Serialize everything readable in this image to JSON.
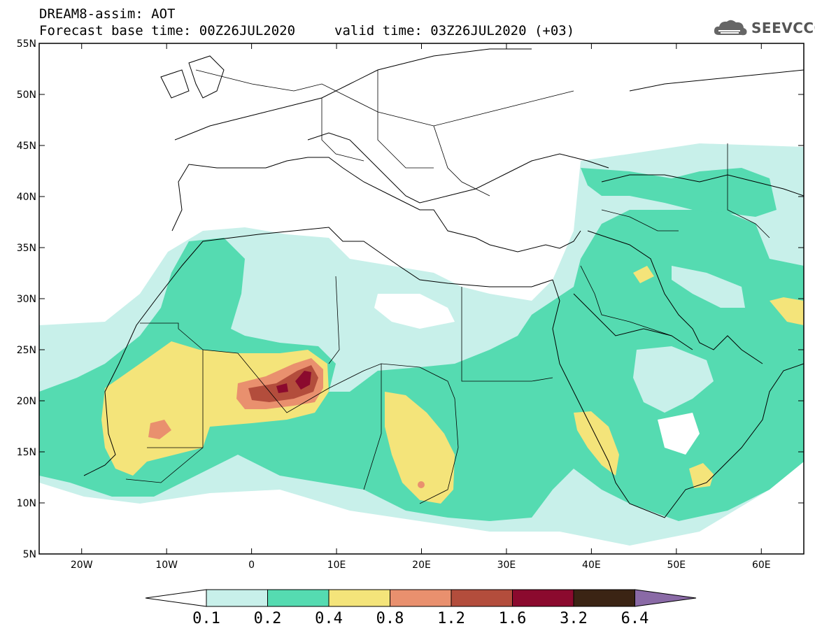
{
  "header": {
    "line1": "DREAM8-assim: AOT",
    "line2": "Forecast base time: 00Z26JUL2020",
    "valid": "valid time: 03Z26JUL2020 (+03)",
    "logo_text": "SEEVCCC",
    "logo_icon": "cloud-icon"
  },
  "map": {
    "lon_range": [
      -25,
      65
    ],
    "lat_range": [
      5,
      55
    ],
    "lat_labels": [
      "55N",
      "50N",
      "45N",
      "40N",
      "35N",
      "30N",
      "25N",
      "20N",
      "15N",
      "10N",
      "5N"
    ],
    "lon_labels": [
      "20W",
      "10W",
      "0",
      "10E",
      "20E",
      "30E",
      "40E",
      "50E",
      "60E"
    ],
    "land_color": "#ffffff",
    "border_color": "#000000"
  },
  "colorbar": {
    "levels": [
      "0.1",
      "0.2",
      "0.4",
      "0.8",
      "1.2",
      "1.6",
      "3.2",
      "6.4"
    ],
    "colors": [
      "#c8f0ea",
      "#55dbb1",
      "#f4e47a",
      "#e9906e",
      "#b34d3c",
      "#8b0a2e",
      "#3b2414",
      "#8a6aa6"
    ]
  }
}
